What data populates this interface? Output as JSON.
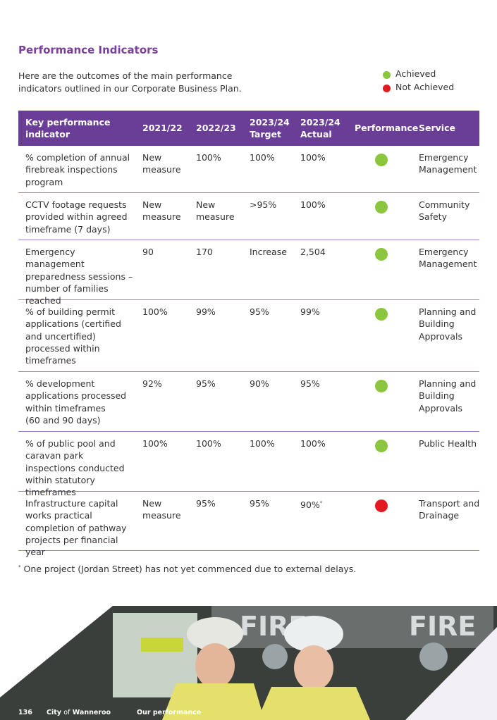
{
  "title": "Performance Indicators",
  "intro": "Here are the outcomes of the main performance indicators outlined in our Corporate Business Plan.",
  "legend": [
    {
      "label": "Achieved",
      "color": "#8cc63f"
    },
    {
      "label": "Not Achieved",
      "color": "#e11b22"
    }
  ],
  "table": {
    "headers": [
      "Key performance indicator",
      "2021/22",
      "2022/23",
      "2023/24 Target",
      "2023/24 Actual",
      "Performance",
      "Service"
    ],
    "rows": [
      {
        "kpi": "% completion of annual firebreak inspections program",
        "y2122": "New measure",
        "y2223": "100%",
        "target": "100%",
        "actual": "100%",
        "performance": "Achieved",
        "service": "Emergency Management"
      },
      {
        "kpi": "CCTV footage requests provided within agreed timeframe (7 days)",
        "y2122": "New measure",
        "y2223": "New measure",
        "target": ">95%",
        "actual": "100%",
        "performance": "Achieved",
        "service": "Community Safety"
      },
      {
        "kpi": "Emergency management preparedness sessions – number of families reached",
        "y2122": "90",
        "y2223": "170",
        "target": "Increase",
        "actual": "2,504",
        "performance": "Achieved",
        "service": "Emergency Management"
      },
      {
        "kpi": "% of building permit applications (certified and uncertified) processed within timeframes",
        "y2122": "100%",
        "y2223": "99%",
        "target": "95%",
        "actual": "99%",
        "performance": "Achieved",
        "service": "Planning and Building Approvals"
      },
      {
        "kpi": "% development applications processed within timeframes\n(60 and 90 days)",
        "y2122": "92%",
        "y2223": "95%",
        "target": "90%",
        "actual": "95%",
        "performance": "Achieved",
        "service": "Planning and Building Approvals"
      },
      {
        "kpi": "% of public pool and caravan park inspections conducted within statutory timeframes",
        "y2122": "100%",
        "y2223": "100%",
        "target": "100%",
        "actual": "100%",
        "performance": "Achieved",
        "service": "Public Health"
      },
      {
        "kpi": "Infrastructure capital works practical completion of pathway projects per financial year",
        "y2122": "New measure",
        "y2223": "95%",
        "target": "95%",
        "actual": "90%",
        "actual_marker": "*",
        "performance": "Not Achieved",
        "service": "Transport and Drainage"
      }
    ]
  },
  "footnote": {
    "marker": "*",
    "text": "One project (Jordan Street) has not yet commenced due to external delays."
  },
  "footer": {
    "page": "136",
    "org_1": "City",
    "org_2": "of",
    "org_3": "Wanneroo",
    "section": "Our performance"
  }
}
